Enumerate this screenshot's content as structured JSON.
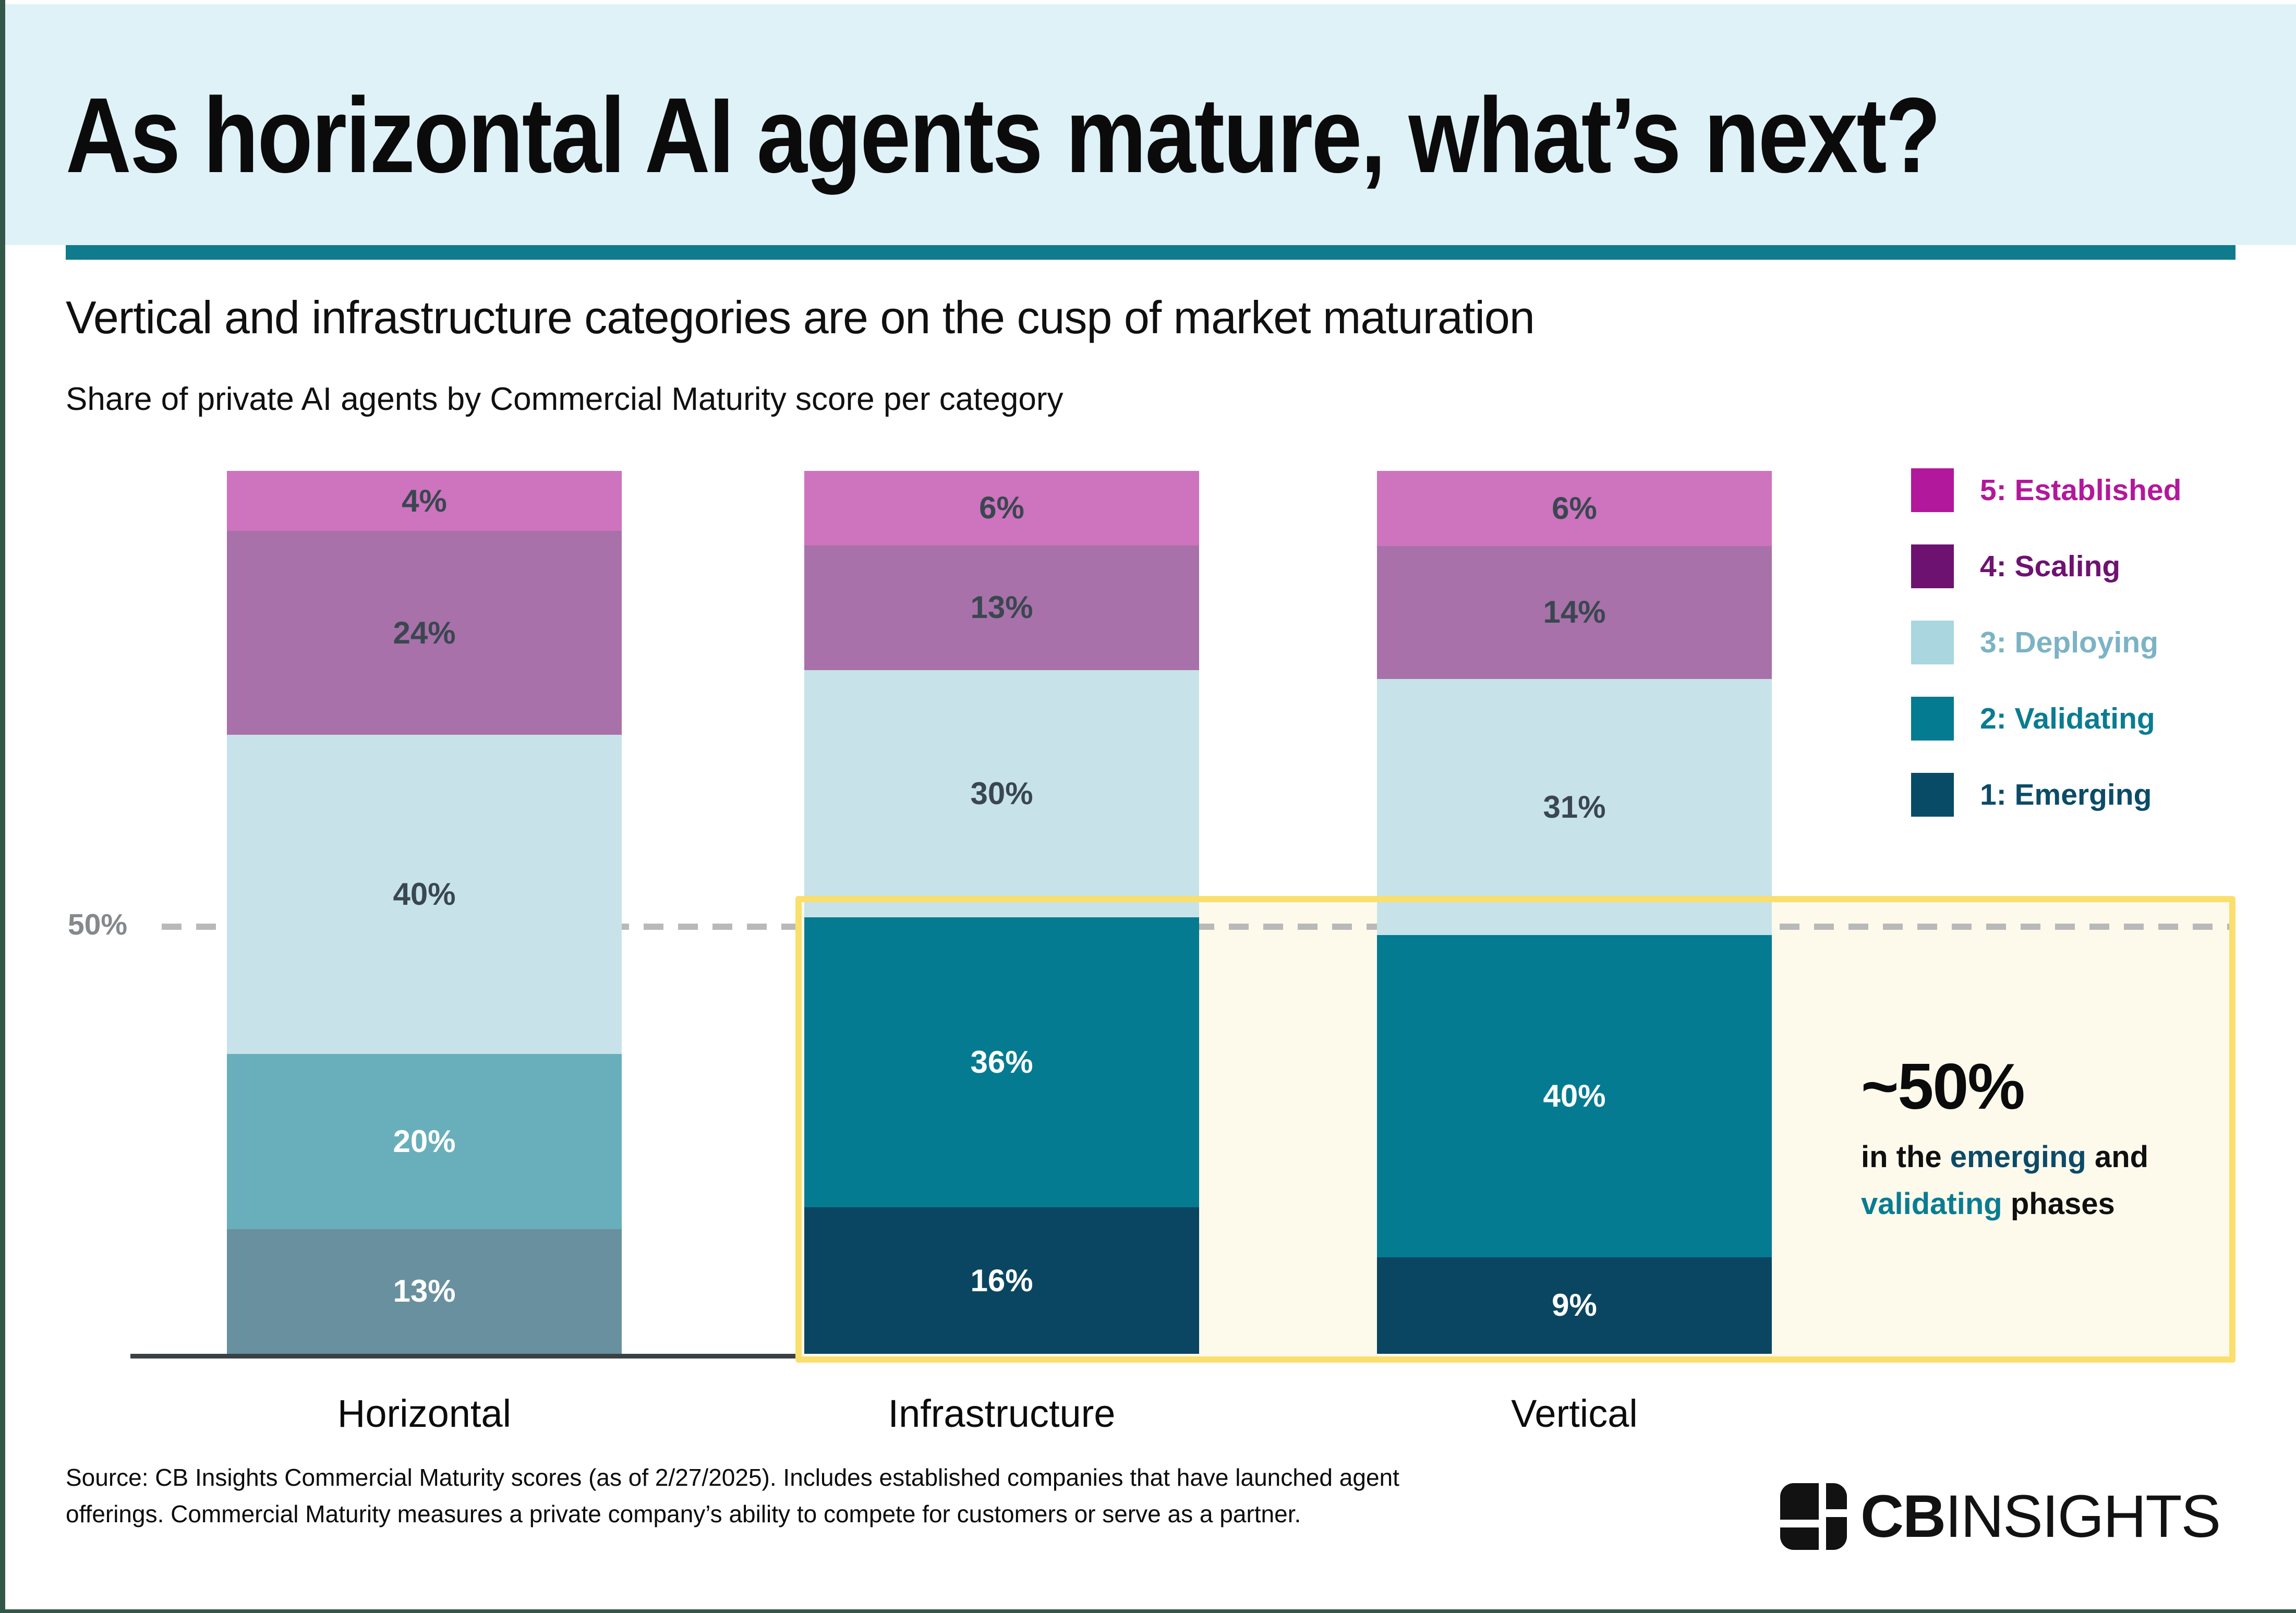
{
  "title": "As horizontal AI agents mature, what’s next?",
  "subtitle": "Vertical and infrastructure categories are on the cusp of market maturation",
  "chart_note": "Share of private AI agents by Commercial Maturity score per category",
  "chart_data": {
    "type": "bar",
    "stacked": true,
    "value_suffix": "%",
    "ylim": [
      0,
      100
    ],
    "grid": "single 50% dashed reference line",
    "legend_position": "top-right",
    "categories": [
      "Horizontal",
      "Infrastructure",
      "Vertical"
    ],
    "series": [
      {
        "name": "5: Established",
        "values": [
          4,
          6,
          6
        ],
        "fills": [
          "#CE73BE",
          "#CE73BE",
          "#CE73BE"
        ],
        "label_colors": [
          "#3A4750",
          "#3A4750",
          "#3A4750"
        ]
      },
      {
        "name": "4: Scaling",
        "values": [
          24,
          13,
          14
        ],
        "fills": [
          "#A871A9",
          "#A871A9",
          "#A871A9"
        ],
        "label_colors": [
          "#3A4750",
          "#3A4750",
          "#3A4750"
        ]
      },
      {
        "name": "3: Deploying",
        "values": [
          40,
          30,
          31
        ],
        "fills": [
          "#C7E3E9",
          "#C7E3E9",
          "#C7E3E9"
        ],
        "label_colors": [
          "#3A4750",
          "#3A4750",
          "#3A4750"
        ]
      },
      {
        "name": "2: Validating",
        "values": [
          20,
          36,
          40
        ],
        "fills": [
          "#68AFBB",
          "#047B91",
          "#047B91"
        ],
        "label_colors": [
          "#FFFFFF",
          "#FFFFFF",
          "#FFFFFF"
        ]
      },
      {
        "name": "1: Emerging",
        "values": [
          13,
          16,
          9
        ],
        "fills": [
          "#68909F",
          "#0A4661",
          "#0A4661"
        ],
        "label_colors": [
          "#FFFFFF",
          "#FFFFFF",
          "#FFFFFF"
        ]
      }
    ],
    "gridline": {
      "value": 50,
      "label": "50%"
    },
    "highlight_box": "emerging and validating segments of Infrastructure and Vertical"
  },
  "gridline_label": "50%",
  "legend": {
    "items": [
      {
        "label": "5: Established",
        "swatch": "#B2189B",
        "text_color": "#B2189B"
      },
      {
        "label": "4: Scaling",
        "swatch": "#6E1271",
        "text_color": "#6E1271"
      },
      {
        "label": "3: Deploying",
        "swatch": "#A9D6DF",
        "text_color": "#7CB3C4"
      },
      {
        "label": "2: Validating",
        "swatch": "#047B91",
        "text_color": "#0A7C92"
      },
      {
        "label": "1: Emerging",
        "swatch": "#084B66",
        "text_color": "#0C4B68"
      }
    ]
  },
  "annotation": {
    "headline": "~50%",
    "lines": [
      [
        {
          "text": "in the ",
          "color": "#101010"
        },
        {
          "text": "emerging",
          "color": "#0C4B68"
        },
        {
          "text": " and",
          "color": "#101010"
        }
      ],
      [
        {
          "text": "validating",
          "color": "#0A7C92"
        },
        {
          "text": " phases",
          "color": "#101010"
        }
      ]
    ]
  },
  "source_lines": [
    "Source: CB Insights Commercial Maturity scores (as of 2/27/2025). Includes established companies that have launched agent",
    "offerings. Commercial Maturity measures a private company’s ability to compete for customers or serve as a partner."
  ],
  "logo": {
    "cb": "CB",
    "insights": "INSIGHTS"
  },
  "colors": {
    "header_bg": "#DFF2F8",
    "header_rule": "#0F7B8C",
    "highlight_border": "#FBDF6E",
    "highlight_fill": "#FDFAEC",
    "gridline": "#B9B9B9",
    "axis": "#3A4145"
  }
}
